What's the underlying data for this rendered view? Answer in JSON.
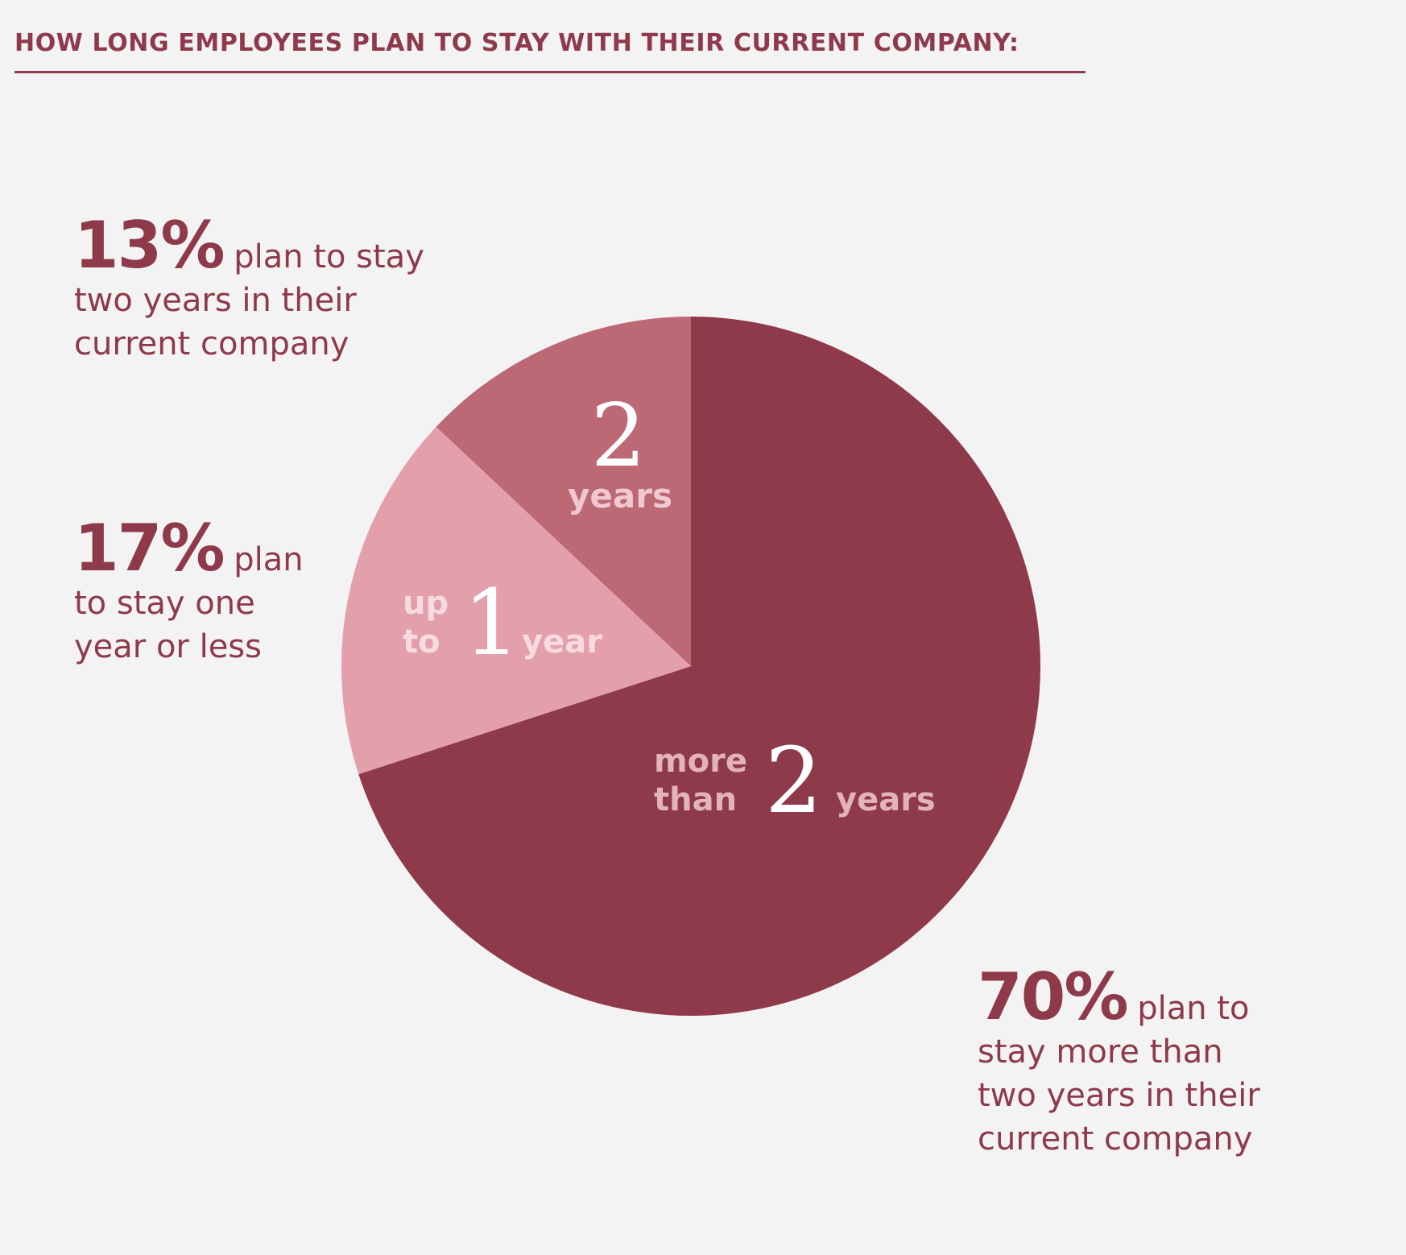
{
  "title": "HOW LONG EMPLOYEES PLAN TO STAY WITH THEIR CURRENT COMPANY:",
  "callouts": {
    "c13": {
      "pct": "13%",
      "lines": [
        "plan to stay",
        "two years in their",
        "current company"
      ]
    },
    "c17": {
      "pct": "17%",
      "lines": [
        "plan",
        "to stay one",
        "year or less"
      ]
    },
    "c70": {
      "pct": "70%",
      "lines": [
        "plan to",
        "stay more than",
        "two years in their",
        "current company"
      ]
    }
  },
  "chart_data": {
    "type": "pie",
    "slices": [
      {
        "key": "more_than_2_years",
        "value": 70,
        "color": "#8e3a4a",
        "label_small_1": "more",
        "label_small_2": "than",
        "label_number": "2",
        "label_unit": "years"
      },
      {
        "key": "up_to_1_year",
        "value": 17,
        "color": "#e3a0ac",
        "label_small_1": "up",
        "label_small_2": "to",
        "label_number": "1",
        "label_unit": "year"
      },
      {
        "key": "2_years",
        "value": 13,
        "color": "#bd6875",
        "label_number": "2",
        "label_unit": "years"
      }
    ]
  }
}
